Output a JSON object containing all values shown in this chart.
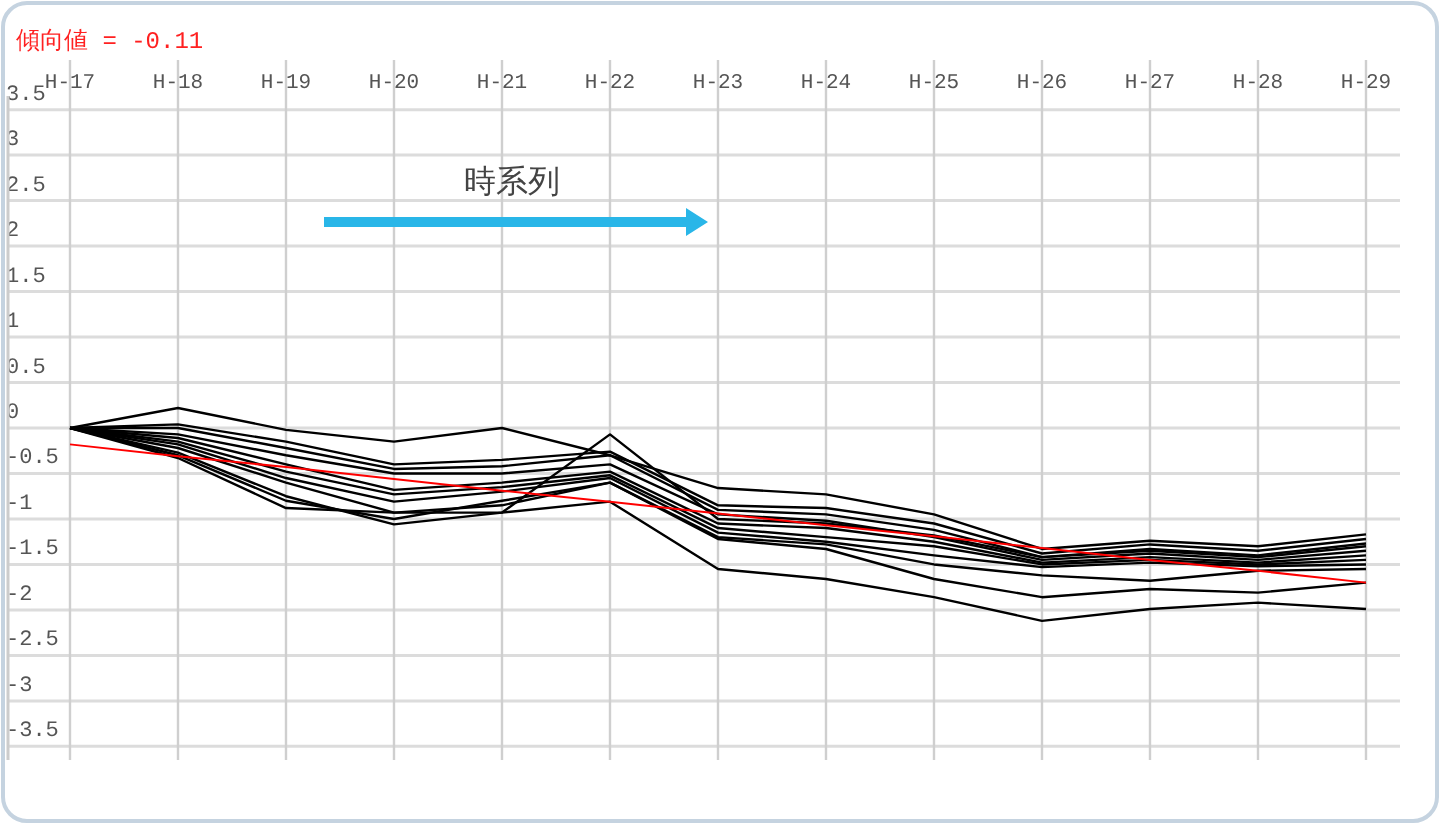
{
  "chart_data": {
    "type": "line",
    "categories": [
      "H-17",
      "H-18",
      "H-19",
      "H-20",
      "H-21",
      "H-22",
      "H-23",
      "H-24",
      "H-25",
      "H-26",
      "H-27",
      "H-28",
      "H-29"
    ],
    "series": [
      {
        "color": "#000000",
        "values": [
          0,
          0.22,
          -0.02,
          -0.15,
          0,
          -0.3,
          -0.66,
          -0.73,
          -0.95,
          -1.33,
          -1.24,
          -1.3,
          -1.17
        ]
      },
      {
        "color": "#000000",
        "values": [
          0,
          0.04,
          -0.15,
          -0.4,
          -0.35,
          -0.26,
          -0.85,
          -0.88,
          -1.05,
          -1.38,
          -1.28,
          -1.35,
          -1.22
        ]
      },
      {
        "color": "#000000",
        "values": [
          0,
          0,
          -0.22,
          -0.45,
          -0.42,
          -0.3,
          -0.9,
          -0.95,
          -1.12,
          -1.42,
          -1.33,
          -1.4,
          -1.27
        ]
      },
      {
        "color": "#000000",
        "values": [
          0,
          -0.07,
          -0.3,
          -0.5,
          -0.5,
          -0.4,
          -0.95,
          -1.02,
          -1.2,
          -1.45,
          -1.38,
          -1.45,
          -1.35
        ]
      },
      {
        "color": "#000000",
        "values": [
          0,
          -0.11,
          -0.4,
          -0.68,
          -0.6,
          -0.48,
          -1.05,
          -1.1,
          -1.25,
          -1.48,
          -1.42,
          -1.48,
          -1.4
        ]
      },
      {
        "color": "#000000",
        "values": [
          0,
          -0.15,
          -0.48,
          -0.73,
          -0.65,
          -0.52,
          -1.1,
          -1.2,
          -1.3,
          -1.5,
          -1.45,
          -1.5,
          -1.45
        ]
      },
      {
        "color": "#000000",
        "values": [
          0,
          -0.18,
          -0.55,
          -0.81,
          -0.7,
          -0.55,
          -1.15,
          -1.25,
          -1.4,
          -1.53,
          -1.48,
          -1.52,
          -1.5
        ]
      },
      {
        "color": "#000000",
        "values": [
          0,
          -0.27,
          -0.75,
          -1.06,
          -0.93,
          -0.07,
          -1.0,
          -1.05,
          -1.18,
          -1.42,
          -1.35,
          -1.42,
          -1.3
        ]
      },
      {
        "color": "#000000",
        "values": [
          0,
          -0.22,
          -0.6,
          -0.93,
          -0.85,
          -0.6,
          -1.2,
          -1.28,
          -1.5,
          -1.62,
          -1.68,
          -1.57,
          -1.55
        ]
      },
      {
        "color": "#000000",
        "values": [
          0,
          -0.3,
          -0.8,
          -1.0,
          -0.8,
          -0.6,
          -1.22,
          -1.33,
          -1.66,
          -1.86,
          -1.77,
          -1.81,
          -1.7
        ]
      },
      {
        "color": "#000000",
        "values": [
          0,
          -0.33,
          -0.88,
          -0.93,
          -0.93,
          -0.81,
          -1.55,
          -1.66,
          -1.86,
          -2.12,
          -1.99,
          -1.92,
          -1.99
        ]
      },
      {
        "color": "#ff0000",
        "values": [
          -0.18,
          -0.31,
          -0.43,
          -0.56,
          -0.69,
          -0.81,
          -0.94,
          -1.07,
          -1.19,
          -1.32,
          -1.45,
          -1.57,
          -1.7
        ]
      }
    ],
    "ylim": [
      -3.65,
      3.65
    ],
    "yticks": [
      3.5,
      3,
      2.5,
      2,
      1.5,
      1,
      0.5,
      0,
      -0.5,
      -1,
      -1.5,
      -2,
      -2.5,
      -3,
      -3.5
    ],
    "grid": true,
    "marker": "none",
    "line_style": "solid",
    "annotations": [
      "傾向値 = -0.11",
      "時系列"
    ]
  }
}
